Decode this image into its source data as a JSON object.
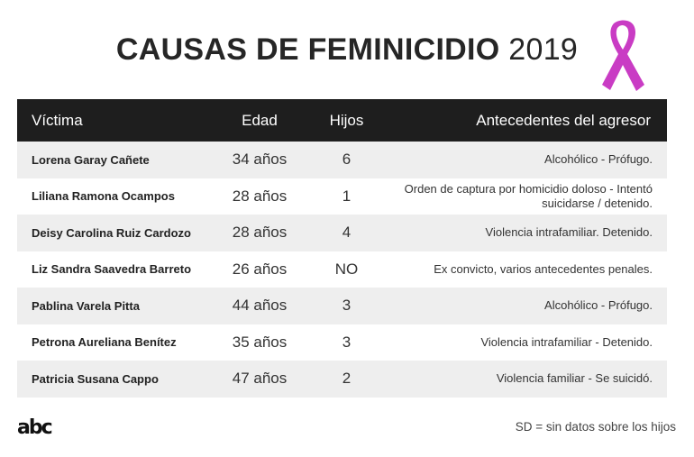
{
  "title": {
    "main": "CAUSAS DE FEMINICIDIO",
    "year": "2019"
  },
  "ribbon_color": "#c93cc4",
  "table": {
    "headers": [
      "Víctima",
      "Edad",
      "Hijos",
      "Antecedentes del agresor"
    ],
    "rows": [
      {
        "victima": "Lorena Garay Cañete",
        "edad": "34 años",
        "hijos": "6",
        "antecedentes": "Alcohólico - Prófugo."
      },
      {
        "victima": "Liliana Ramona Ocampos",
        "edad": "28 años",
        "hijos": "1",
        "antecedentes": "Orden de captura por homicidio doloso - Intentó suicidarse / detenido."
      },
      {
        "victima": "Deisy Carolina Ruiz Cardozo",
        "edad": "28 años",
        "hijos": "4",
        "antecedentes": "Violencia intrafamiliar. Detenido."
      },
      {
        "victima": "Liz Sandra Saavedra Barreto",
        "edad": "26 años",
        "hijos": "NO",
        "antecedentes": "Ex convicto, varios antecedentes penales."
      },
      {
        "victima": "Pablina Varela Pitta",
        "edad": "44 años",
        "hijos": "3",
        "antecedentes": "Alcohólico - Prófugo."
      },
      {
        "victima": "Petrona Aureliana Benítez",
        "edad": "35 años",
        "hijos": "3",
        "antecedentes": "Violencia intrafamiliar - Detenido."
      },
      {
        "victima": "Patricia Susana Cappo",
        "edad": "47 años",
        "hijos": "2",
        "antecedentes": "Violencia familiar - Se suicidó."
      }
    ]
  },
  "footer": {
    "logo": "abc",
    "note": "SD = sin datos sobre los hijos"
  }
}
